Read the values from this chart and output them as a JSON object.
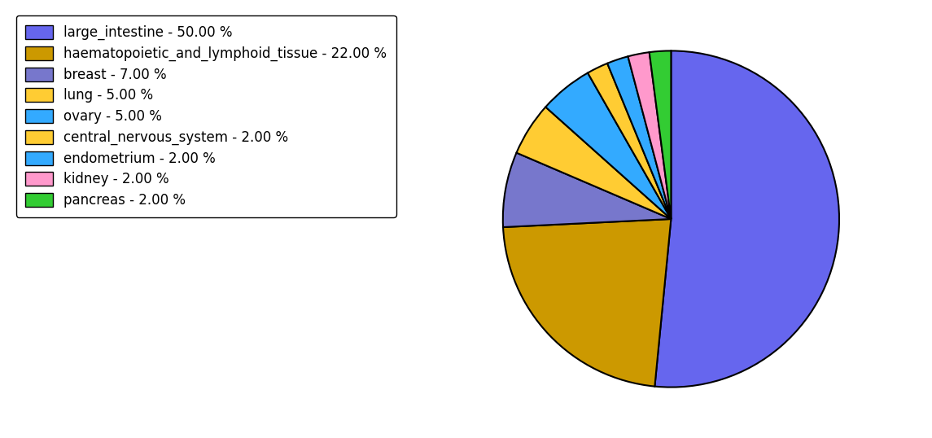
{
  "labels": [
    "large_intestine",
    "haematopoietic_and_lymphoid_tissue",
    "breast",
    "lung",
    "ovary",
    "central_nervous_system",
    "endometrium",
    "kidney",
    "pancreas"
  ],
  "values": [
    50,
    22,
    7,
    5,
    5,
    2,
    2,
    2,
    2
  ],
  "colors": [
    "#6666ee",
    "#cc9900",
    "#7777cc",
    "#ffcc33",
    "#33aaff",
    "#ffcc33",
    "#33aaff",
    "#ff99cc",
    "#33cc33"
  ],
  "legend_labels": [
    "large_intestine - 50.00 %",
    "haematopoietic_and_lymphoid_tissue - 22.00 %",
    "breast - 7.00 %",
    "lung - 5.00 %",
    "ovary - 5.00 %",
    "central_nervous_system - 2.00 %",
    "endometrium - 2.00 %",
    "kidney - 2.00 %",
    "pancreas - 2.00 %"
  ],
  "legend_colors": [
    "#6666ee",
    "#cc9900",
    "#7777cc",
    "#ffcc33",
    "#33aaff",
    "#ffcc33",
    "#33aaff",
    "#ff99cc",
    "#33cc33"
  ],
  "background_color": "#ffffff",
  "edgecolor": "#000000",
  "linewidth": 1.5,
  "startangle": 90,
  "legend_fontsize": 12,
  "counterclock": false
}
